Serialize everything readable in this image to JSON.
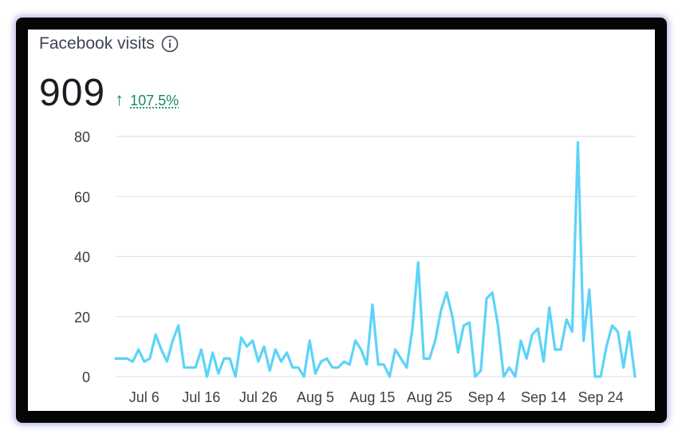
{
  "card": {
    "title": "Facebook visits",
    "value": "909",
    "change": "107.5%",
    "change_color": "#188a5e",
    "info_icon": "info-icon",
    "trend_icon": "arrow-up-icon"
  },
  "chart_data": {
    "type": "line",
    "line_color": "#5dd3f8",
    "grid": true,
    "ylim": [
      0,
      80
    ],
    "yticks": [
      0,
      20,
      40,
      60,
      80
    ],
    "xtick_labels": [
      "Jul 6",
      "Jul 16",
      "Jul 26",
      "Aug 5",
      "Aug 15",
      "Aug 25",
      "Sep 4",
      "Sep 14",
      "Sep 24"
    ],
    "xtick_index": [
      5,
      15,
      25,
      35,
      45,
      55,
      65,
      75,
      85
    ],
    "x_start": "Jul 1",
    "series": [
      {
        "values": [
          6,
          6,
          6,
          5,
          9,
          5,
          6,
          14,
          9,
          5,
          12,
          17,
          3,
          3,
          3,
          9,
          0,
          8,
          1,
          6,
          6,
          0,
          13,
          10,
          12,
          5,
          10,
          2,
          9,
          5,
          8,
          3,
          3,
          0,
          12,
          1,
          5,
          6,
          3,
          3,
          5,
          4,
          12,
          9,
          4,
          24,
          4,
          4,
          0,
          9,
          6,
          3,
          16,
          38,
          6,
          6,
          12,
          22,
          28,
          20,
          8,
          17,
          18,
          0,
          2,
          26,
          28,
          17,
          0,
          3,
          0,
          12,
          6,
          14,
          16,
          5,
          23,
          9,
          9,
          19,
          15,
          78,
          12,
          29,
          0,
          0,
          10,
          17,
          15,
          3,
          15,
          0
        ]
      }
    ]
  }
}
